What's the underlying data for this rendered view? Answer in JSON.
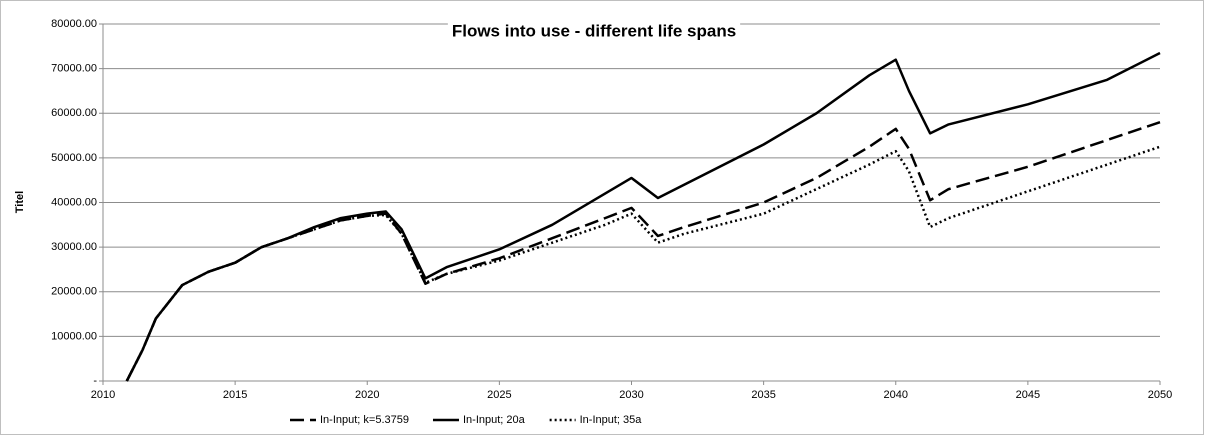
{
  "chart_data": {
    "type": "line",
    "title": "Flows into use - different life spans",
    "y_label": "Titel",
    "x": [
      2010.9,
      2011.5,
      2012,
      2013,
      2014,
      2015,
      2016,
      2017,
      2018,
      2019,
      2020,
      2020.7,
      2021.3,
      2022.2,
      2023,
      2025,
      2027,
      2029,
      2030,
      2031,
      2032,
      2035,
      2037,
      2039,
      2040,
      2040.5,
      2041.3,
      2042,
      2045,
      2048,
      2050
    ],
    "series": [
      {
        "name": "In-Input; k=5.3759",
        "color": "#000000",
        "style": "dashed",
        "values": [
          0,
          7000,
          14000,
          21500,
          24500,
          26500,
          30000,
          32000,
          34000,
          36000,
          37000,
          37500,
          33000,
          21800,
          24000,
          27500,
          32000,
          36500,
          38800,
          32500,
          34500,
          40000,
          45500,
          52500,
          56500,
          52000,
          40500,
          43000,
          48000,
          54000,
          58000
        ]
      },
      {
        "name": "In-Input; 20a",
        "color": "#000000",
        "style": "solid",
        "values": [
          0,
          7000,
          14000,
          21500,
          24500,
          26500,
          30000,
          32000,
          34500,
          36500,
          37500,
          38000,
          34000,
          23000,
          25500,
          29500,
          35000,
          42000,
          45500,
          41000,
          44000,
          53000,
          60000,
          68500,
          72000,
          65000,
          55500,
          57500,
          62000,
          67500,
          73500
        ]
      },
      {
        "name": "In-Input; 35a",
        "color": "#000000",
        "style": "dotted",
        "values": [
          0,
          7000,
          14000,
          21500,
          24500,
          26500,
          30000,
          32000,
          34000,
          36000,
          37000,
          37200,
          33000,
          22000,
          24000,
          27000,
          31000,
          35000,
          37500,
          31000,
          33000,
          37500,
          43000,
          48500,
          51500,
          47000,
          34500,
          36500,
          42500,
          48500,
          52500
        ]
      }
    ],
    "xlim": [
      2010,
      2050
    ],
    "xticks": [
      2010,
      2015,
      2020,
      2025,
      2030,
      2035,
      2040,
      2045,
      2050
    ],
    "ylim": [
      0,
      80000
    ],
    "yticks": [
      {
        "value": 0,
        "label": "-"
      },
      {
        "value": 10000,
        "label": "10000.00"
      },
      {
        "value": 20000,
        "label": "20000.00"
      },
      {
        "value": 30000,
        "label": "30000.00"
      },
      {
        "value": 40000,
        "label": "40000.00"
      },
      {
        "value": 50000,
        "label": "50000.00"
      },
      {
        "value": 60000,
        "label": "60000.00"
      },
      {
        "value": 70000,
        "label": "70000.00"
      },
      {
        "value": 80000,
        "label": "80000.00"
      }
    ],
    "grid": true,
    "legend": "bottom"
  }
}
